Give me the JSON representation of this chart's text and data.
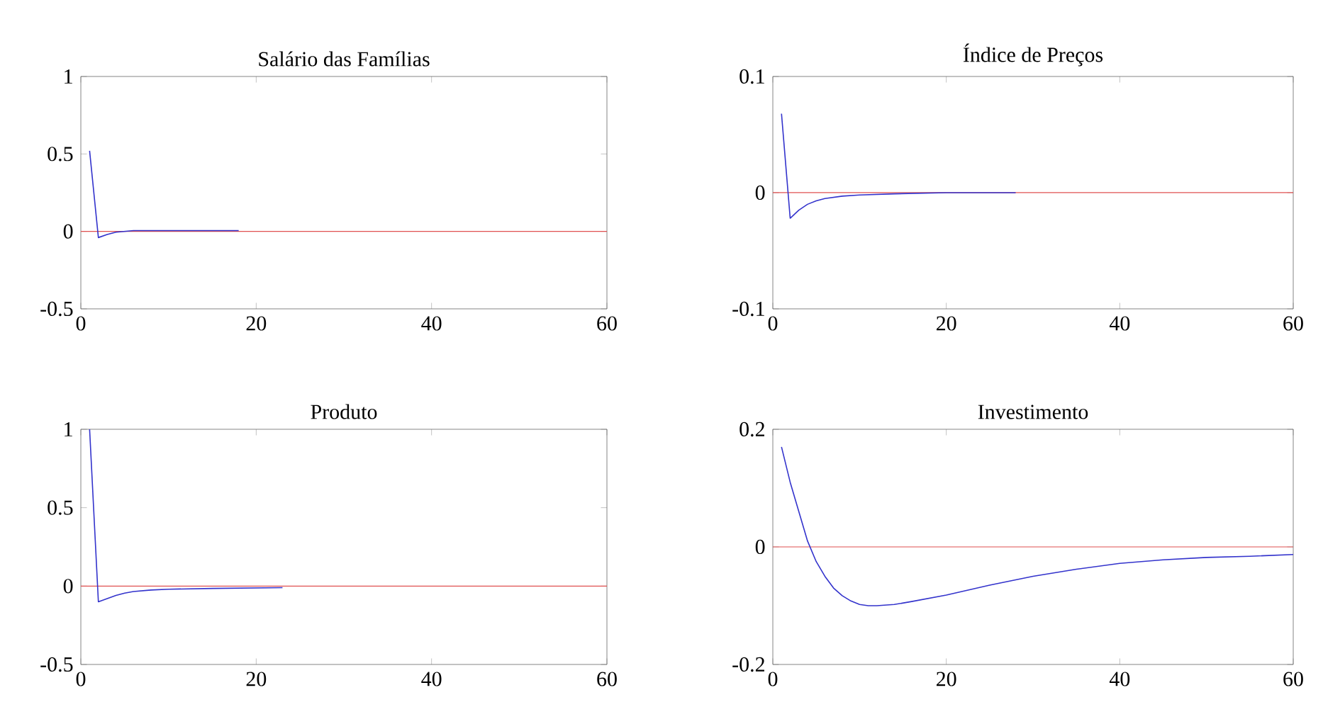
{
  "chart_data": [
    {
      "type": "line",
      "title": "Salário das Famílias",
      "x": [
        1,
        2,
        3,
        4,
        5,
        6,
        8,
        10,
        14,
        18
      ],
      "values": [
        0.52,
        -0.04,
        -0.02,
        -0.005,
        0.0,
        0.005,
        0.005,
        0.005,
        0.005,
        0.005
      ],
      "color": "#3333cc",
      "xlim": [
        0,
        60
      ],
      "ylim": [
        -0.5,
        1
      ],
      "xticks": [
        0,
        20,
        40,
        60
      ],
      "yticks": [
        -0.5,
        0,
        0.5,
        1
      ],
      "ref_lines": [
        {
          "axis": "y",
          "value": 0,
          "color": "#e05050"
        }
      ]
    },
    {
      "type": "line",
      "title": "Índice de Preços",
      "x": [
        1,
        2,
        3,
        4,
        5,
        6,
        8,
        10,
        14,
        20,
        28
      ],
      "values": [
        0.068,
        -0.022,
        -0.015,
        -0.01,
        -0.007,
        -0.005,
        -0.003,
        -0.002,
        -0.001,
        0,
        0
      ],
      "color": "#3333cc",
      "xlim": [
        0,
        60
      ],
      "ylim": [
        -0.1,
        0.1
      ],
      "xticks": [
        0,
        20,
        40,
        60
      ],
      "yticks": [
        -0.1,
        0,
        0.1
      ],
      "ref_lines": [
        {
          "axis": "y",
          "value": 0,
          "color": "#e05050"
        }
      ]
    },
    {
      "type": "line",
      "title": "Produto",
      "x": [
        1,
        2,
        3,
        4,
        5,
        6,
        8,
        10,
        15,
        23
      ],
      "values": [
        1.0,
        -0.1,
        -0.08,
        -0.06,
        -0.045,
        -0.035,
        -0.025,
        -0.02,
        -0.015,
        -0.01
      ],
      "color": "#3333cc",
      "xlim": [
        0,
        60
      ],
      "ylim": [
        -0.5,
        1
      ],
      "xticks": [
        0,
        20,
        40,
        60
      ],
      "yticks": [
        -0.5,
        0,
        0.5,
        1
      ],
      "ref_lines": [
        {
          "axis": "y",
          "value": 0,
          "color": "#e05050"
        }
      ]
    },
    {
      "type": "line",
      "title": "Investimento",
      "x": [
        1,
        2,
        3,
        4,
        5,
        6,
        7,
        8,
        9,
        10,
        11,
        12,
        14,
        16,
        20,
        25,
        30,
        35,
        40,
        45,
        50,
        55,
        60
      ],
      "values": [
        0.17,
        0.11,
        0.06,
        0.01,
        -0.025,
        -0.05,
        -0.07,
        -0.083,
        -0.092,
        -0.098,
        -0.1,
        -0.1,
        -0.098,
        -0.093,
        -0.082,
        -0.065,
        -0.05,
        -0.038,
        -0.028,
        -0.022,
        -0.018,
        -0.016,
        -0.013
      ],
      "color": "#3333cc",
      "xlim": [
        0,
        60
      ],
      "ylim": [
        -0.2,
        0.2
      ],
      "xticks": [
        0,
        20,
        40,
        60
      ],
      "yticks": [
        -0.2,
        0,
        0.2
      ],
      "ref_lines": [
        {
          "axis": "y",
          "value": 0,
          "color": "#e05050"
        }
      ]
    }
  ]
}
